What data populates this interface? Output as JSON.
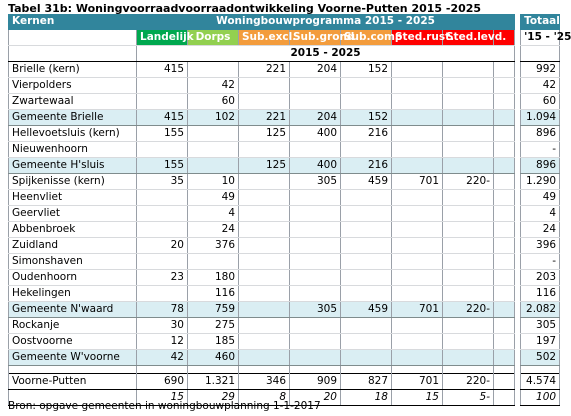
{
  "title": "Tabel 31b: Woningvoorraadvoorraadontwikkeling Voorne-Putten 2015 -2025",
  "source": "Bron: opgave gemeenten in woningbouwplanning 1-1-2017",
  "header": {
    "kernen": "Kernen",
    "programma": "Woningbouwprogramma 2015 - 2025",
    "totaal": "Totaal",
    "period": "2015 - 2025",
    "totaal_period": "'15 - '25"
  },
  "categories": [
    "Landelijk",
    "Dorps",
    "Sub.excl.",
    "Sub.grond",
    "Sub.comp",
    "Sted.rust.",
    "Sted.levd.",
    ""
  ],
  "colors": {
    "header": "#31859c",
    "landelijk": "#00a84f",
    "dorps": "#92d050",
    "sub": "#f39c3c",
    "sted": "#ff0000",
    "gemeente_row": "#daeef3"
  },
  "rows": [
    {
      "name": "Brielle (kern)",
      "type": "kern",
      "v": [
        "415",
        "",
        "221",
        "204",
        "152",
        "",
        "",
        ""
      ],
      "total": "992"
    },
    {
      "name": "Vierpolders",
      "type": "kern",
      "v": [
        "",
        "42",
        "",
        "",
        "",
        "",
        "",
        ""
      ],
      "total": "42"
    },
    {
      "name": "Zwartewaal",
      "type": "kern",
      "v": [
        "",
        "60",
        "",
        "",
        "",
        "",
        "",
        ""
      ],
      "total": "60"
    },
    {
      "name": "Gemeente Brielle",
      "type": "gem",
      "v": [
        "415",
        "102",
        "221",
        "204",
        "152",
        "",
        "",
        ""
      ],
      "total": "1.094"
    },
    {
      "name": "Hellevoetsluis (kern)",
      "type": "kern",
      "v": [
        "155",
        "",
        "125",
        "400",
        "216",
        "",
        "",
        ""
      ],
      "total": "896"
    },
    {
      "name": "Nieuwenhoorn",
      "type": "kern",
      "v": [
        "",
        "",
        "",
        "",
        "",
        "",
        "",
        ""
      ],
      "total": "-"
    },
    {
      "name": "Gemeente H'sluis",
      "type": "gem",
      "v": [
        "155",
        "",
        "125",
        "400",
        "216",
        "",
        "",
        ""
      ],
      "total": "896"
    },
    {
      "name": "Spijkenisse (kern)",
      "type": "kern",
      "v": [
        "35",
        "10",
        "",
        "305",
        "459",
        "701",
        "220-",
        ""
      ],
      "total": "1.290"
    },
    {
      "name": "Heenvliet",
      "type": "kern",
      "v": [
        "",
        "49",
        "",
        "",
        "",
        "",
        "",
        ""
      ],
      "total": "49"
    },
    {
      "name": "Geervliet",
      "type": "kern",
      "v": [
        "",
        "4",
        "",
        "",
        "",
        "",
        "",
        ""
      ],
      "total": "4"
    },
    {
      "name": "Abbenbroek",
      "type": "kern",
      "v": [
        "",
        "24",
        "",
        "",
        "",
        "",
        "",
        ""
      ],
      "total": "24"
    },
    {
      "name": "Zuidland",
      "type": "kern",
      "v": [
        "20",
        "376",
        "",
        "",
        "",
        "",
        "",
        ""
      ],
      "total": "396"
    },
    {
      "name": "Simonshaven",
      "type": "kern",
      "v": [
        "",
        "",
        "",
        "",
        "",
        "",
        "",
        ""
      ],
      "total": "-"
    },
    {
      "name": "Oudenhoorn",
      "type": "kern",
      "v": [
        "23",
        "180",
        "",
        "",
        "",
        "",
        "",
        ""
      ],
      "total": "203"
    },
    {
      "name": "Hekelingen",
      "type": "kern",
      "v": [
        "",
        "116",
        "",
        "",
        "",
        "",
        "",
        ""
      ],
      "total": "116"
    },
    {
      "name": "Gemeente N'waard",
      "type": "gem",
      "v": [
        "78",
        "759",
        "",
        "305",
        "459",
        "701",
        "220-",
        ""
      ],
      "total": "2.082"
    },
    {
      "name": "Rockanje",
      "type": "kern",
      "v": [
        "30",
        "275",
        "",
        "",
        "",
        "",
        "",
        ""
      ],
      "total": "305"
    },
    {
      "name": "Oostvoorne",
      "type": "kern",
      "v": [
        "12",
        "185",
        "",
        "",
        "",
        "",
        "",
        ""
      ],
      "total": "197"
    },
    {
      "name": "Gemeente W'voorne",
      "type": "gem",
      "v": [
        "42",
        "460",
        "",
        "",
        "",
        "",
        "",
        ""
      ],
      "total": "502"
    }
  ],
  "total_row": {
    "name": "Voorne-Putten",
    "v": [
      "690",
      "1.321",
      "346",
      "909",
      "827",
      "701",
      "220-",
      ""
    ],
    "total": "4.574"
  },
  "pct_row": {
    "v": [
      "15",
      "29",
      "8",
      "20",
      "18",
      "15",
      "5-",
      ""
    ],
    "total": "100"
  }
}
